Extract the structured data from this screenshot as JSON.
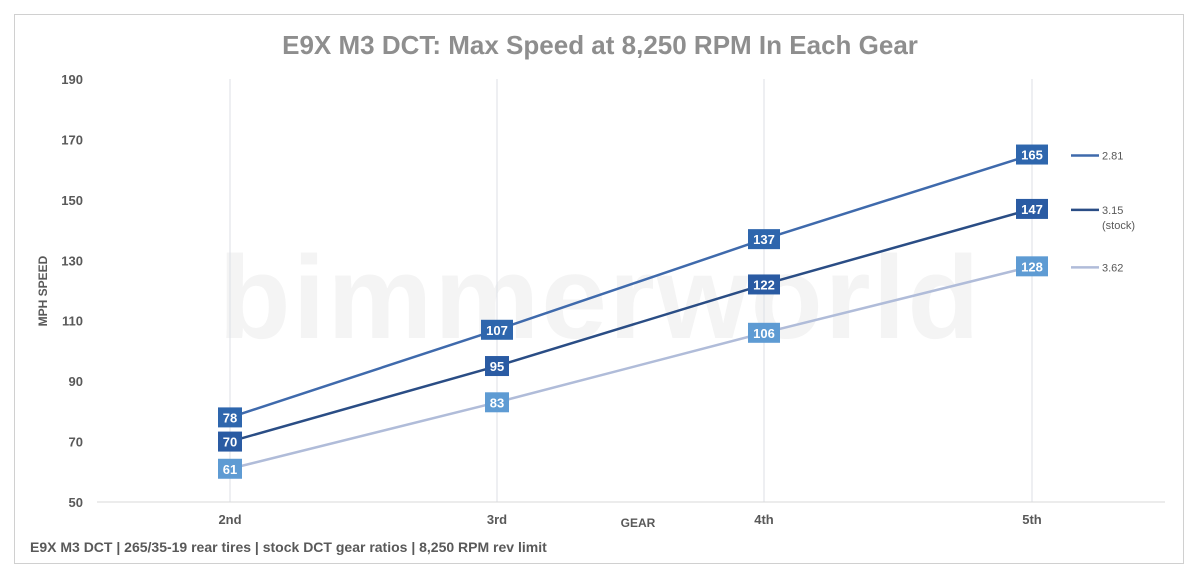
{
  "chart_data": {
    "type": "line",
    "title": "E9X M3 DCT: Max Speed at 8,250 RPM In Each Gear",
    "xlabel": "GEAR",
    "ylabel": "MPH SPEED",
    "categories": [
      "2nd",
      "3rd",
      "4th",
      "5th"
    ],
    "ylim": [
      50,
      190
    ],
    "yticks": [
      50,
      70,
      90,
      110,
      130,
      150,
      170,
      190
    ],
    "grid": "vertical",
    "legend_position": "right",
    "watermark": "bimmerworld",
    "series": [
      {
        "name": "2.81",
        "values": [
          78,
          107,
          137,
          165
        ],
        "line_color": "#3f6aac",
        "label_color": "#2e66ad"
      },
      {
        "name": "3.15",
        "name_line2": "(stock)",
        "values": [
          70,
          95,
          122,
          147
        ],
        "line_color": "#2a4d85",
        "label_color": "#2a5ba3"
      },
      {
        "name": "3.62",
        "values": [
          61,
          83,
          106,
          128
        ],
        "line_color": "#b0bcd9",
        "label_color": "#5e9bd3"
      }
    ]
  },
  "footer": "E9X M3 DCT  |  265/35-19 rear tires  |  stock DCT gear ratios  |  8,250 RPM rev limit"
}
